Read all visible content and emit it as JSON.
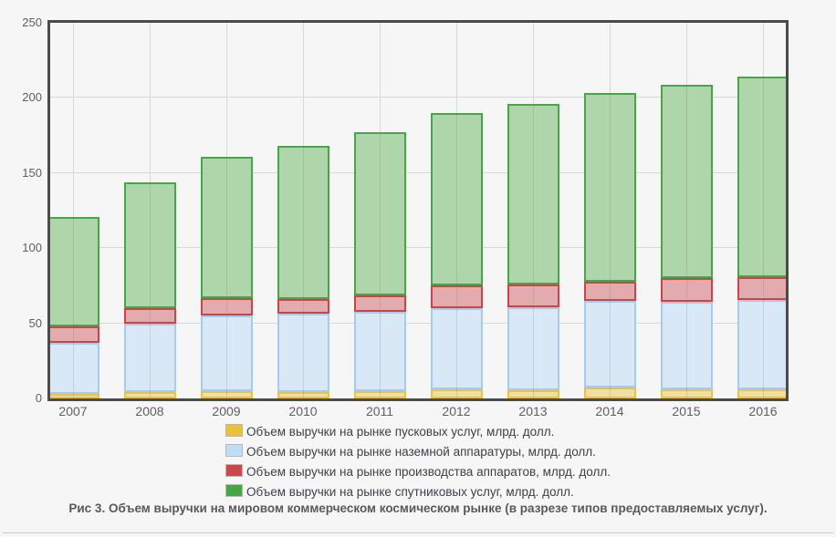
{
  "panel": {
    "background": "#f6f6f6"
  },
  "chart_data": {
    "type": "bar",
    "stacked": true,
    "caption": "Рис 3. Объем выручки на мировом коммерческом космическом рынке (в разрезе типов предоставляемых услуг).",
    "categories": [
      "2007",
      "2008",
      "2009",
      "2010",
      "2011",
      "2012",
      "2013",
      "2014",
      "2015",
      "2016"
    ],
    "series": [
      {
        "name": "Объем выручки на рынке пусковых услуг, млрд. долл.",
        "key": "launch-services",
        "fill": "#F1DEA2",
        "border": "#E9C24A",
        "swatch": "#E8C23F",
        "values": [
          3,
          4,
          5,
          4.5,
          5,
          6,
          5.5,
          7,
          6,
          6
        ]
      },
      {
        "name": "Объем выручки на рынке наземной аппаратуры, млрд. долл.",
        "key": "ground-equipment",
        "fill": "#D9E8F7",
        "border": "#A9CBEA",
        "swatch": "#BFDDF4",
        "values": [
          34,
          46,
          50,
          52,
          52.5,
          54,
          55,
          58,
          58.5,
          59.5
        ]
      },
      {
        "name": "Объем выручки на рынке производства аппаратов, млрд. долл.",
        "key": "spacecraft-manufacturing",
        "fill": "#E4ABAE",
        "border": "#C8454B",
        "swatch": "#C8484B",
        "values": [
          11,
          10,
          12,
          9.5,
          11,
          15,
          15.5,
          12.5,
          15.5,
          15.5
        ]
      },
      {
        "name": "Объем выручки на рынке спутниковых услуг, млрд. долл.",
        "key": "satellite-services",
        "fill": "#AFD5AA",
        "border": "#4AA44B",
        "swatch": "#47A447",
        "values": [
          73,
          84,
          94,
          102,
          108.5,
          115,
          120,
          125.5,
          129,
          133
        ]
      }
    ],
    "totals": [
      121,
      144,
      161,
      168,
      177,
      190,
      196,
      203,
      209,
      214
    ],
    "ylim": [
      0,
      250
    ],
    "yticks": [
      0,
      50,
      100,
      150,
      200,
      250
    ],
    "grid": true,
    "legend_position": "bottom",
    "colors": {
      "frame": "#4b4b4b",
      "gridline": "#d9d9d9",
      "tick_text": "#5f5f5f",
      "legend_text": "#3c4147",
      "caption_text": "#595959"
    }
  }
}
